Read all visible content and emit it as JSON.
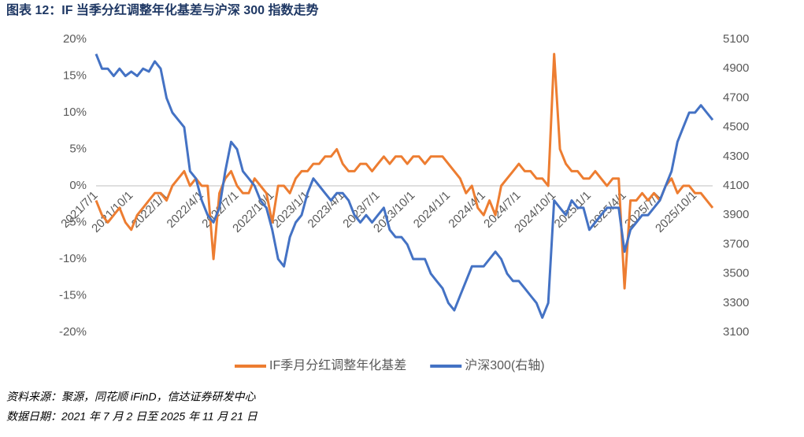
{
  "chart_data": {
    "type": "line",
    "title": "图表 12：IF 当季分红调整年化基差与沪深 300 指数走势",
    "source": "资料来源：聚源，同花顺 iFinD，信达证券研发中心",
    "date_note": "数据日期：2021 年 7 月 2 日至 2025 年 11 月 21 日",
    "categories": [
      "2021/7/1",
      null,
      null,
      null,
      null,
      null,
      "2021/10/1",
      null,
      null,
      null,
      null,
      null,
      "2022/1/1",
      null,
      null,
      null,
      null,
      null,
      "2022/4/1",
      null,
      null,
      null,
      null,
      null,
      "2022/7/1",
      null,
      null,
      null,
      null,
      null,
      "2022/10/1",
      null,
      null,
      null,
      null,
      null,
      "2023/1/1",
      null,
      null,
      null,
      null,
      null,
      "2023/4/1",
      null,
      null,
      null,
      null,
      null,
      "2023/7/1",
      null,
      null,
      null,
      null,
      null,
      "2023/10/1",
      null,
      null,
      null,
      null,
      null,
      "2024/1/1",
      null,
      null,
      null,
      null,
      null,
      "2024/4/1",
      null,
      null,
      null,
      null,
      null,
      "2024/7/1",
      null,
      null,
      null,
      null,
      null,
      "2024/10/1",
      null,
      null,
      null,
      null,
      null,
      "2025/1/1",
      null,
      null,
      null,
      null,
      null,
      "2025/4/1",
      null,
      null,
      null,
      null,
      null,
      "2025/7/1",
      null,
      null,
      null,
      null,
      null,
      "2025/10/1",
      null,
      null,
      null
    ],
    "series": [
      {
        "name": "IF季月分红调整年化基差",
        "color": "#ed7d31",
        "axis": "y",
        "values": [
          -2,
          -4,
          -5,
          -4,
          -3,
          -5,
          -6,
          -4,
          -3,
          -2,
          -1,
          -1,
          -2,
          0,
          1,
          2,
          0,
          1,
          0,
          0,
          -10,
          -1,
          1,
          2,
          0,
          -1,
          -1,
          1,
          0,
          -1,
          -5,
          0,
          0,
          -1,
          1,
          2,
          2,
          3,
          3,
          4,
          4,
          5,
          3,
          2,
          2,
          3,
          3,
          2,
          3,
          4,
          3,
          4,
          4,
          3,
          4,
          4,
          3,
          4,
          4,
          4,
          3,
          2,
          1,
          -1,
          0,
          -3,
          -4,
          -2,
          -4,
          0,
          1,
          2,
          3,
          2,
          2,
          1,
          1,
          0,
          18,
          5,
          3,
          2,
          2,
          1,
          1,
          2,
          1,
          0,
          1,
          1,
          -14,
          -2,
          -2,
          -1,
          -2,
          -1,
          -2,
          0,
          1,
          -1,
          0,
          0,
          -1,
          -1,
          -2,
          -3
        ]
      },
      {
        "name": "沪深300(右轴)",
        "color": "#4472c4",
        "axis": "y2",
        "values": [
          5000,
          4900,
          4900,
          4850,
          4900,
          4850,
          4880,
          4850,
          4900,
          4880,
          4950,
          4900,
          4700,
          4600,
          4550,
          4500,
          4200,
          4150,
          4000,
          3900,
          3850,
          3950,
          4200,
          4400,
          4350,
          4200,
          4150,
          4100,
          4000,
          3950,
          3800,
          3600,
          3550,
          3750,
          3850,
          3900,
          4050,
          4150,
          4100,
          4050,
          4000,
          4050,
          4050,
          4000,
          3900,
          3850,
          3900,
          3850,
          3900,
          3950,
          3800,
          3750,
          3750,
          3700,
          3600,
          3600,
          3600,
          3500,
          3450,
          3400,
          3300,
          3250,
          3350,
          3450,
          3550,
          3550,
          3550,
          3600,
          3650,
          3600,
          3500,
          3450,
          3450,
          3400,
          3350,
          3300,
          3200,
          3300,
          4000,
          3950,
          3900,
          4000,
          3950,
          3950,
          3800,
          3850,
          3900,
          3950,
          3950,
          3950,
          3650,
          3800,
          3850,
          3900,
          3900,
          3950,
          4000,
          4100,
          4200,
          4400,
          4500,
          4600,
          4600,
          4650,
          4600,
          4550
        ]
      }
    ],
    "ylim": [
      -20,
      20
    ],
    "yticks": [
      {
        "value": -20,
        "label": "-20%"
      },
      {
        "value": -15,
        "label": "-15%"
      },
      {
        "value": -10,
        "label": "-10%"
      },
      {
        "value": -5,
        "label": "-5%"
      },
      {
        "value": 0,
        "label": "0%"
      },
      {
        "value": 5,
        "label": "5%"
      },
      {
        "value": 10,
        "label": "10%"
      },
      {
        "value": 15,
        "label": "15%"
      },
      {
        "value": 20,
        "label": "20%"
      }
    ],
    "y2lim": [
      3100,
      5100
    ],
    "y2ticks": [
      3100,
      3300,
      3500,
      3700,
      3900,
      4100,
      4300,
      4500,
      4700,
      4900,
      5100
    ],
    "legend": "bottom"
  }
}
